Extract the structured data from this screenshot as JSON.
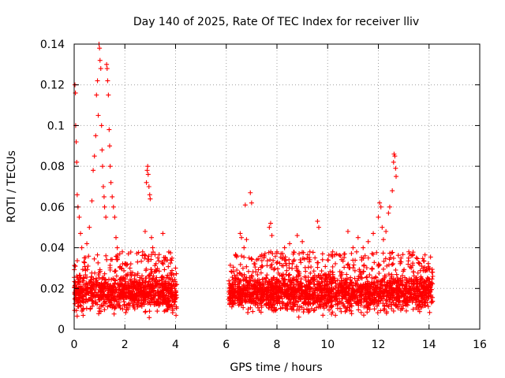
{
  "chart_data": {
    "type": "scatter",
    "title": "Day 140 of 2025, Rate Of TEC Index for receiver lliv",
    "xlabel": "GPS time / hours",
    "ylabel": "ROTI / TECUs",
    "xlim": [
      0,
      16
    ],
    "ylim": [
      0,
      0.14
    ],
    "xticks": [
      0,
      2,
      4,
      6,
      8,
      10,
      12,
      14,
      16
    ],
    "yticks": [
      0,
      0.02,
      0.04,
      0.06,
      0.08,
      0.1,
      0.12,
      0.14
    ],
    "ytick_labels": [
      "0",
      "0.02",
      "0.04",
      "0.06",
      "0.08",
      "0.1",
      "0.12",
      "0.14"
    ],
    "grid": true,
    "marker": "+",
    "color": "#ff0000",
    "series": [
      {
        "name": "ROTI",
        "segments": [
          {
            "x_start": 0.0,
            "x_end": 4.05,
            "baseline_range": [
              0.005,
              0.028
            ]
          },
          {
            "x_start": 6.1,
            "x_end": 14.15,
            "baseline_range": [
              0.005,
              0.028
            ]
          }
        ],
        "points": [
          [
            0.03,
            0.12
          ],
          [
            0.05,
            0.116
          ],
          [
            0.06,
            0.1
          ],
          [
            0.08,
            0.092
          ],
          [
            0.1,
            0.082
          ],
          [
            0.12,
            0.066
          ],
          [
            0.15,
            0.06
          ],
          [
            0.2,
            0.055
          ],
          [
            0.25,
            0.047
          ],
          [
            0.3,
            0.04
          ],
          [
            0.4,
            0.035
          ],
          [
            0.5,
            0.042
          ],
          [
            0.6,
            0.05
          ],
          [
            0.7,
            0.063
          ],
          [
            0.75,
            0.078
          ],
          [
            0.8,
            0.085
          ],
          [
            0.85,
            0.095
          ],
          [
            0.88,
            0.115
          ],
          [
            0.92,
            0.122
          ],
          [
            0.95,
            0.105
          ],
          [
            0.98,
            0.14
          ],
          [
            1.0,
            0.138
          ],
          [
            1.02,
            0.132
          ],
          [
            1.05,
            0.128
          ],
          [
            1.08,
            0.1
          ],
          [
            1.1,
            0.088
          ],
          [
            1.12,
            0.08
          ],
          [
            1.15,
            0.07
          ],
          [
            1.18,
            0.065
          ],
          [
            1.2,
            0.06
          ],
          [
            1.25,
            0.055
          ],
          [
            1.28,
            0.13
          ],
          [
            1.3,
            0.128
          ],
          [
            1.32,
            0.122
          ],
          [
            1.35,
            0.115
          ],
          [
            1.38,
            0.098
          ],
          [
            1.4,
            0.09
          ],
          [
            1.42,
            0.08
          ],
          [
            1.45,
            0.072
          ],
          [
            1.5,
            0.065
          ],
          [
            1.55,
            0.06
          ],
          [
            1.6,
            0.055
          ],
          [
            1.65,
            0.045
          ],
          [
            1.7,
            0.04
          ],
          [
            1.8,
            0.037
          ],
          [
            1.9,
            0.038
          ],
          [
            2.0,
            0.032
          ],
          [
            2.2,
            0.03
          ],
          [
            2.5,
            0.033
          ],
          [
            2.7,
            0.038
          ],
          [
            2.8,
            0.048
          ],
          [
            2.85,
            0.072
          ],
          [
            2.88,
            0.078
          ],
          [
            2.9,
            0.08
          ],
          [
            2.92,
            0.076
          ],
          [
            2.95,
            0.07
          ],
          [
            2.98,
            0.066
          ],
          [
            3.0,
            0.064
          ],
          [
            3.05,
            0.045
          ],
          [
            3.1,
            0.04
          ],
          [
            3.3,
            0.035
          ],
          [
            3.5,
            0.047
          ],
          [
            3.6,
            0.035
          ],
          [
            3.8,
            0.034
          ],
          [
            4.0,
            0.03
          ],
          [
            6.4,
            0.036
          ],
          [
            6.55,
            0.047
          ],
          [
            6.6,
            0.045
          ],
          [
            6.7,
            0.04
          ],
          [
            6.75,
            0.061
          ],
          [
            6.8,
            0.044
          ],
          [
            6.9,
            0.035
          ],
          [
            6.95,
            0.067
          ],
          [
            7.0,
            0.062
          ],
          [
            7.2,
            0.034
          ],
          [
            7.5,
            0.036
          ],
          [
            7.7,
            0.05
          ],
          [
            7.75,
            0.052
          ],
          [
            7.8,
            0.046
          ],
          [
            8.0,
            0.038
          ],
          [
            8.3,
            0.04
          ],
          [
            8.5,
            0.042
          ],
          [
            8.8,
            0.046
          ],
          [
            9.0,
            0.043
          ],
          [
            9.3,
            0.038
          ],
          [
            9.5,
            0.035
          ],
          [
            9.6,
            0.053
          ],
          [
            9.65,
            0.05
          ],
          [
            9.8,
            0.037
          ],
          [
            10.0,
            0.034
          ],
          [
            10.2,
            0.038
          ],
          [
            10.5,
            0.036
          ],
          [
            10.8,
            0.048
          ],
          [
            11.0,
            0.04
          ],
          [
            11.2,
            0.045
          ],
          [
            11.4,
            0.04
          ],
          [
            11.6,
            0.043
          ],
          [
            11.8,
            0.047
          ],
          [
            12.0,
            0.055
          ],
          [
            12.05,
            0.062
          ],
          [
            12.1,
            0.06
          ],
          [
            12.15,
            0.05
          ],
          [
            12.2,
            0.044
          ],
          [
            12.3,
            0.048
          ],
          [
            12.4,
            0.057
          ],
          [
            12.45,
            0.06
          ],
          [
            12.55,
            0.068
          ],
          [
            12.6,
            0.082
          ],
          [
            12.62,
            0.086
          ],
          [
            12.65,
            0.085
          ],
          [
            12.68,
            0.079
          ],
          [
            12.7,
            0.075
          ],
          [
            12.9,
            0.033
          ],
          [
            13.2,
            0.038
          ],
          [
            13.5,
            0.035
          ],
          [
            13.7,
            0.025
          ],
          [
            14.0,
            0.03
          ]
        ]
      }
    ]
  }
}
